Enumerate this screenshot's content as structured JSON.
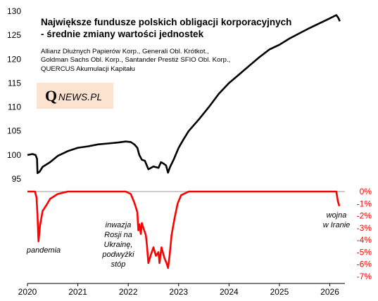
{
  "header": {
    "title_line1": "Największe fundusze polskich obligacji korporacyjnych",
    "title_line2": "- średnie zmiany wartości jednostek",
    "subtitle_line1": "Allianz Dłużnych Papierów Korp., Generali Obl. Krótkot.,",
    "subtitle_line2": "Goldman Sachs Obl. Korp., Santander Prestiż SFIO Obl. Korp.,",
    "subtitle_line3": "QUERCUS Akumulacji Kapitału"
  },
  "logo": {
    "q": "Q",
    "rest": "NEWS.PL"
  },
  "annotations": {
    "pandemia": "pandemia",
    "inwazja_1": "inwazja",
    "inwazja_2": "Rosji na",
    "inwazja_3": "Ukrainę,",
    "inwazja_4": "podwyżki",
    "inwazja_5": "stóp",
    "wojna_1": "wojna",
    "wojna_2": "w Iranie"
  },
  "colors": {
    "index_line": "#000000",
    "drawdown_line": "#ff0000",
    "axis_right": "#ff0000",
    "logo_bg": "#fbe3cf"
  },
  "chart_data": [
    {
      "type": "line",
      "name": "index",
      "x_ticks": [
        "2020",
        "2021",
        "2022",
        "2023",
        "2024",
        "2025",
        "2026"
      ],
      "y_ticks": [
        95,
        100,
        105,
        110,
        115,
        120,
        125,
        130
      ],
      "ylim": [
        95,
        130
      ],
      "xlim": [
        2020.0,
        2026.3
      ],
      "x": [
        2020.0,
        2020.1,
        2020.16,
        2020.19,
        2020.2,
        2020.24,
        2020.3,
        2020.45,
        2020.6,
        2020.8,
        2021.0,
        2021.2,
        2021.4,
        2021.6,
        2021.8,
        2021.95,
        2022.05,
        2022.12,
        2022.18,
        2022.22,
        2022.27,
        2022.33,
        2022.4,
        2022.5,
        2022.6,
        2022.65,
        2022.7,
        2022.75,
        2022.79,
        2022.83,
        2022.9,
        2023.0,
        2023.1,
        2023.2,
        2023.4,
        2023.6,
        2023.8,
        2024.0,
        2024.2,
        2024.4,
        2024.6,
        2024.8,
        2025.0,
        2025.2,
        2025.4,
        2025.6,
        2025.8,
        2026.0,
        2026.13,
        2026.17,
        2026.2
      ],
      "y": [
        100.0,
        100.2,
        100.0,
        99.2,
        96.2,
        96.5,
        97.5,
        98.5,
        99.8,
        100.8,
        101.5,
        101.8,
        102.2,
        102.4,
        102.6,
        102.8,
        102.7,
        102.2,
        101.5,
        100.0,
        99.0,
        98.8,
        97.0,
        97.6,
        97.3,
        98.5,
        98.2,
        97.8,
        96.3,
        97.5,
        99.0,
        101.5,
        103.3,
        105.0,
        107.4,
        110.0,
        112.8,
        115.0,
        116.8,
        118.6,
        120.4,
        122.0,
        123.0,
        124.3,
        125.4,
        126.5,
        127.5,
        128.5,
        129.2,
        128.6,
        127.9
      ]
    },
    {
      "type": "line",
      "name": "drawdown",
      "y_ticks_labels": [
        "0%",
        "-1%",
        "-2%",
        "-3%",
        "-4%",
        "-5%",
        "-6%",
        "-7%"
      ],
      "y_ticks": [
        0,
        -1,
        -2,
        -3,
        -4,
        -5,
        -6,
        -7
      ],
      "ylim": [
        -7,
        0
      ],
      "xlim": [
        2020.0,
        2026.3
      ],
      "x": [
        2020.0,
        2020.15,
        2020.18,
        2020.2,
        2020.22,
        2020.25,
        2020.3,
        2020.38,
        2020.45,
        2020.6,
        2020.8,
        2021.0,
        2021.5,
        2021.95,
        2022.05,
        2022.12,
        2022.18,
        2022.2,
        2022.22,
        2022.25,
        2022.27,
        2022.3,
        2022.35,
        2022.37,
        2022.4,
        2022.45,
        2022.5,
        2022.55,
        2022.6,
        2022.62,
        2022.66,
        2022.72,
        2022.76,
        2022.79,
        2022.82,
        2022.86,
        2022.92,
        2022.98,
        2023.05,
        2023.2,
        2024.0,
        2025.0,
        2026.0,
        2026.13,
        2026.16,
        2026.19
      ],
      "y": [
        0,
        0,
        -0.5,
        -2.0,
        -4.1,
        -2.8,
        -1.6,
        -1.1,
        -0.6,
        -0.2,
        0,
        0,
        0,
        0,
        -0.2,
        -0.9,
        -1.7,
        -3.2,
        -2.7,
        -3.5,
        -2.6,
        -3.0,
        -3.6,
        -4.4,
        -5.9,
        -5.2,
        -4.6,
        -5.3,
        -5.0,
        -5.9,
        -4.6,
        -5.5,
        -5.9,
        -6.3,
        -5.3,
        -3.6,
        -2.2,
        -1.0,
        -0.3,
        0,
        0,
        0,
        0,
        0,
        -0.8,
        -1.2
      ]
    }
  ]
}
